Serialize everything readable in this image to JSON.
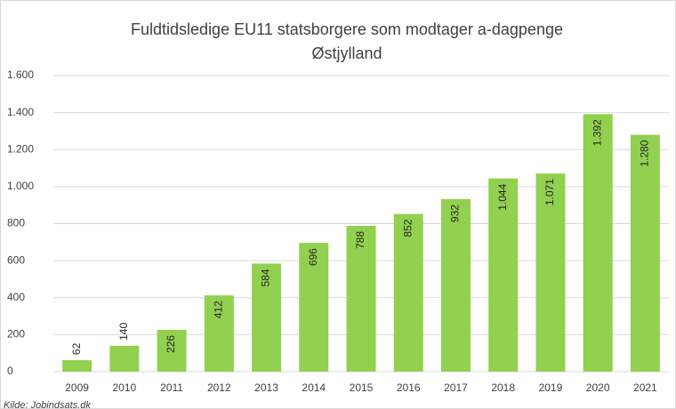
{
  "chart_data": {
    "type": "bar",
    "title": "Fuldtidsledige  EU11 statsborgere som modtager a-dagpenge",
    "subtitle": "Østjylland",
    "note": "Kilde: Jobindsats.dk",
    "categories": [
      "2009",
      "2010",
      "2011",
      "2012",
      "2013",
      "2014",
      "2015",
      "2016",
      "2017",
      "2018",
      "2019",
      "2020",
      "2021"
    ],
    "values": [
      62,
      140,
      226,
      412,
      584,
      696,
      788,
      852,
      932,
      1044,
      1071,
      1392,
      1280
    ],
    "value_labels": [
      "62",
      "140",
      "226",
      "412",
      "584",
      "696",
      "788",
      "852",
      "932",
      "1.044",
      "1.071",
      "1.392",
      "1.280"
    ],
    "color": "#92d050",
    "ylim": [
      0,
      1600
    ],
    "yticks": [
      0,
      200,
      400,
      600,
      800,
      {
        "value": 1000,
        "label": "1.000"
      },
      {
        "value": 1200,
        "label": "1.200"
      },
      {
        "value": 1400,
        "label": "1.400"
      },
      {
        "value": 1600,
        "label": "1.600"
      }
    ],
    "grid": true
  }
}
